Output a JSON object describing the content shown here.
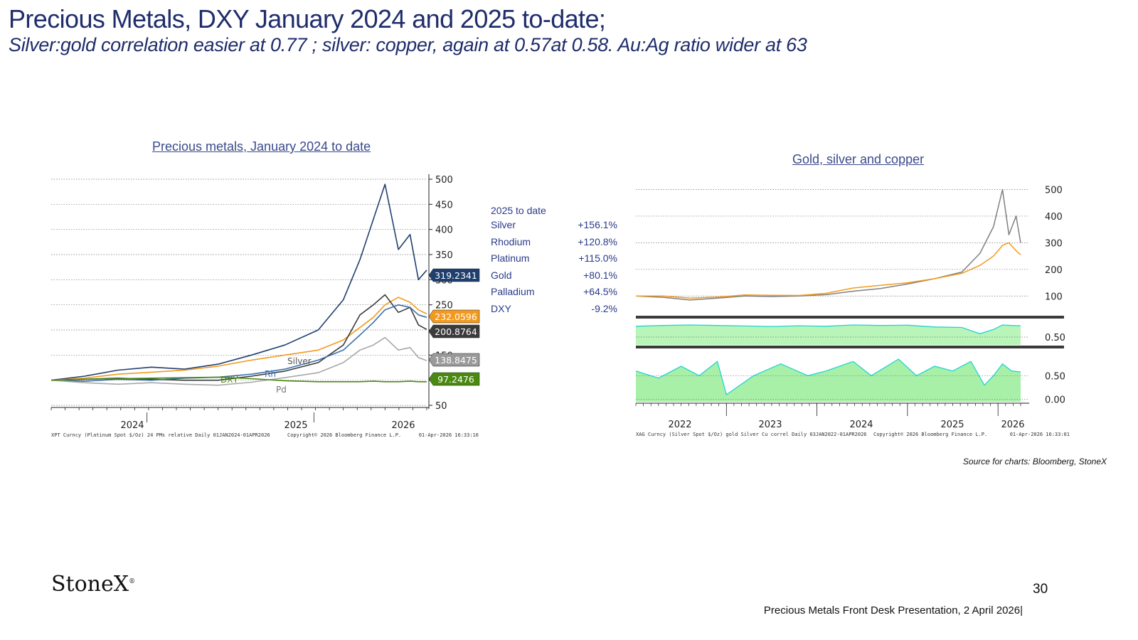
{
  "header": {
    "title": "Precious Metals, DXY January 2024 and 2025 to-date;",
    "subtitle": "Silver:gold correlation easier at 0.77 ; silver: copper, again at 0.57at 0.58.  Au:Ag ratio wider at 63"
  },
  "left_chart": {
    "title": "Precious metals, January 2024 to date",
    "footer_left": "XPT Curncy (Platinum Spot $/Oz) 24 PMs relative Daily 01JAN2024-01APR2026",
    "footer_mid": "Copyright© 2026 Bloomberg Finance L.P.",
    "footer_right": "01-Apr-2026 16:33:16",
    "inline_labels": [
      "Rh",
      "DXY",
      "Silver",
      "Pd"
    ]
  },
  "perf_table": {
    "heading": "2025 to date",
    "rows": [
      {
        "name": "Silver",
        "value": "+156.1%"
      },
      {
        "name": "Rhodium",
        "value": "+120.8%"
      },
      {
        "name": "Platinum",
        "value": "+115.0%"
      },
      {
        "name": "Gold",
        "value": "+80.1%"
      },
      {
        "name": "Palladium",
        "value": "+64.5%"
      },
      {
        "name": "DXY",
        "value": "-9.2%"
      }
    ]
  },
  "right_chart": {
    "title": "Gold, silver and copper",
    "footer_left": "XAG Curncy (Silver Spot $/Oz) gold Silver Cu correl Daily 03JAN2022-01APR2026",
    "footer_mid": "Copyright© 2026 Bloomberg Finance L.P.",
    "footer_right": "01-Apr-2026 16:33:01"
  },
  "chart_data": [
    {
      "type": "line",
      "title": "Precious metals, January 2024 to date",
      "x_ticks": [
        "2024",
        "2025",
        "2026"
      ],
      "ylim": [
        50,
        500
      ],
      "y_ticks": [
        50,
        100,
        150,
        200,
        250,
        300,
        350,
        400,
        450,
        500
      ],
      "grid": true,
      "last_value_labels": [
        {
          "value": "319.2341",
          "color": "#1f3f6e"
        },
        {
          "value": "232.0596",
          "color": "#f39a1e"
        },
        {
          "value": "200.8764",
          "color": "#3b3b3b"
        },
        {
          "value": "138.8475",
          "color": "#9a9a9a"
        },
        {
          "value": "97.2476",
          "color": "#4a8a10"
        }
      ],
      "series": [
        {
          "color": "#1f3f6e",
          "x": [
            2024.0,
            2024.2,
            2024.4,
            2024.6,
            2024.8,
            2025.0,
            2025.2,
            2025.4,
            2025.6,
            2025.75,
            2025.85,
            2025.93,
            2026.0,
            2026.08,
            2026.15,
            2026.2,
            2026.25
          ],
          "values": [
            100,
            108,
            120,
            126,
            122,
            132,
            150,
            170,
            200,
            260,
            340,
            420,
            490,
            360,
            390,
            300,
            319
          ]
        },
        {
          "color": "#f39a1e",
          "x": [
            2024.0,
            2024.2,
            2024.4,
            2024.6,
            2024.8,
            2025.0,
            2025.2,
            2025.4,
            2025.6,
            2025.75,
            2025.85,
            2025.93,
            2026.0,
            2026.08,
            2026.15,
            2026.2,
            2026.25
          ],
          "values": [
            100,
            104,
            112,
            116,
            120,
            128,
            140,
            150,
            160,
            180,
            205,
            225,
            250,
            265,
            255,
            240,
            232
          ]
        },
        {
          "color": "#3b3b3b",
          "x": [
            2024.0,
            2024.2,
            2024.4,
            2024.6,
            2024.8,
            2025.0,
            2025.2,
            2025.4,
            2025.6,
            2025.75,
            2025.85,
            2025.93,
            2026.0,
            2026.08,
            2026.15,
            2026.2,
            2026.25
          ],
          "values": [
            100,
            102,
            104,
            102,
            100,
            100,
            108,
            118,
            135,
            170,
            230,
            250,
            270,
            235,
            245,
            210,
            201
          ]
        },
        {
          "color": "#3a6fb0",
          "x": [
            2024.0,
            2024.2,
            2024.4,
            2024.6,
            2024.8,
            2025.0,
            2025.2,
            2025.4,
            2025.6,
            2025.75,
            2025.85,
            2025.93,
            2026.0,
            2026.08,
            2026.15,
            2026.2,
            2026.25
          ],
          "values": [
            100,
            98,
            102,
            100,
            104,
            106,
            112,
            122,
            140,
            160,
            190,
            215,
            240,
            250,
            245,
            230,
            225
          ]
        },
        {
          "color": "#a8a8a8",
          "x": [
            2024.0,
            2024.2,
            2024.4,
            2024.6,
            2024.8,
            2025.0,
            2025.2,
            2025.4,
            2025.6,
            2025.75,
            2025.85,
            2025.93,
            2026.0,
            2026.08,
            2026.15,
            2026.2,
            2026.25
          ],
          "values": [
            100,
            95,
            92,
            95,
            92,
            90,
            96,
            105,
            115,
            135,
            160,
            170,
            185,
            160,
            165,
            145,
            139
          ]
        },
        {
          "color": "#4a8a10",
          "x": [
            2024.0,
            2024.2,
            2024.4,
            2024.6,
            2024.8,
            2025.0,
            2025.2,
            2025.4,
            2025.6,
            2025.75,
            2025.85,
            2025.93,
            2026.0,
            2026.08,
            2026.15,
            2026.2,
            2026.25
          ],
          "values": [
            100,
            102,
            103,
            104,
            105,
            106,
            103,
            99,
            97,
            97,
            97,
            98,
            97,
            97,
            98,
            97,
            97
          ]
        }
      ]
    },
    {
      "type": "line",
      "title": "Gold, silver and copper",
      "x_ticks": [
        "2022",
        "2023",
        "2024",
        "2025",
        "2026"
      ],
      "top_panel": {
        "ylim": [
          50,
          520
        ],
        "y_ticks": [
          100,
          200,
          300,
          400,
          500
        ],
        "series": [
          {
            "color": "#808080",
            "x": [
              2022.0,
              2022.3,
              2022.6,
              2022.9,
              2023.2,
              2023.5,
              2023.8,
              2024.1,
              2024.4,
              2024.7,
              2025.0,
              2025.3,
              2025.6,
              2025.8,
              2025.95,
              2026.05,
              2026.12,
              2026.2,
              2026.25
            ],
            "values": [
              100,
              95,
              85,
              92,
              100,
              98,
              100,
              105,
              118,
              128,
              145,
              165,
              190,
              260,
              360,
              500,
              330,
              400,
              300
            ]
          },
          {
            "color": "#f39a1e",
            "x": [
              2022.0,
              2022.3,
              2022.6,
              2022.9,
              2023.2,
              2023.5,
              2023.8,
              2024.1,
              2024.4,
              2024.7,
              2025.0,
              2025.3,
              2025.6,
              2025.8,
              2025.95,
              2026.05,
              2026.12,
              2026.2,
              2026.25
            ],
            "values": [
              100,
              100,
              92,
              96,
              104,
              103,
              102,
              110,
              130,
              140,
              150,
              165,
              185,
              215,
              250,
              290,
              300,
              270,
              255
            ]
          }
        ]
      },
      "middle_panel": {
        "y_ticks": [
          0.5
        ],
        "ylim": [
          0,
          1
        ],
        "x": [
          2022.0,
          2022.3,
          2022.6,
          2022.9,
          2023.2,
          2023.5,
          2023.8,
          2024.1,
          2024.4,
          2024.7,
          2025.0,
          2025.3,
          2025.6,
          2025.8,
          2025.95,
          2026.05,
          2026.15,
          2026.25
        ],
        "values": [
          0.75,
          0.78,
          0.8,
          0.78,
          0.76,
          0.74,
          0.77,
          0.75,
          0.8,
          0.78,
          0.79,
          0.72,
          0.7,
          0.45,
          0.62,
          0.8,
          0.78,
          0.77
        ]
      },
      "bottom_panel": {
        "y_ticks": [
          0.0,
          0.5
        ],
        "ylim": [
          -0.05,
          1.0
        ],
        "x": [
          2022.0,
          2022.25,
          2022.5,
          2022.7,
          2022.9,
          2023.0,
          2023.3,
          2023.6,
          2023.9,
          2024.1,
          2024.4,
          2024.6,
          2024.9,
          2025.1,
          2025.3,
          2025.5,
          2025.7,
          2025.85,
          2025.95,
          2026.05,
          2026.15,
          2026.25
        ],
        "values": [
          0.6,
          0.45,
          0.7,
          0.5,
          0.8,
          0.1,
          0.5,
          0.75,
          0.5,
          0.6,
          0.8,
          0.5,
          0.85,
          0.5,
          0.7,
          0.6,
          0.8,
          0.3,
          0.5,
          0.75,
          0.6,
          0.58
        ]
      }
    }
  ]
}
